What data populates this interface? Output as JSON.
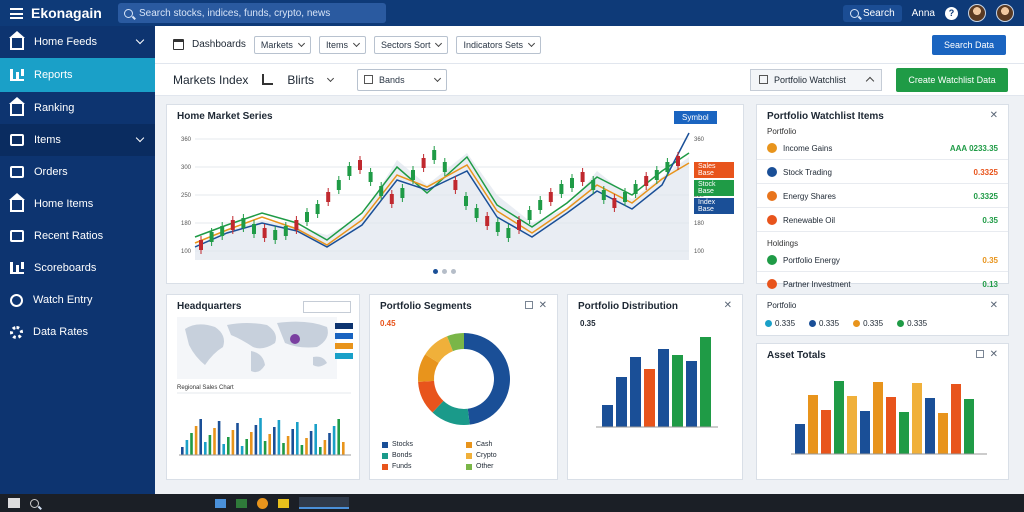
{
  "topbar": {
    "brand": "Ekonagain",
    "search_placeholder": "Search stocks, indices, funds, crypto, news",
    "search_label": "Search",
    "user_label": "Anna",
    "colors": {
      "bar": "#0e3a78",
      "accent": "#1aa0c8"
    }
  },
  "sidebar": {
    "items": [
      {
        "label": "Home Feeds",
        "icon": "home-icon"
      },
      {
        "label": "Reports",
        "icon": "chart-icon",
        "active": true
      },
      {
        "label": "Ranking",
        "icon": "home-icon"
      },
      {
        "label": "Items",
        "icon": "box-icon",
        "expandable": true
      },
      {
        "label": "Orders",
        "icon": "bars-icon"
      },
      {
        "label": "Home Items",
        "icon": "home-icon"
      },
      {
        "label": "Recent Ratios",
        "icon": "box-icon"
      },
      {
        "label": "Scoreboards",
        "icon": "chart-icon"
      },
      {
        "label": "Watch Entry",
        "icon": "globe-icon"
      },
      {
        "label": "Data Rates",
        "icon": "gear-icon"
      }
    ]
  },
  "toolbar": {
    "date_label": "Dashboards",
    "filters": [
      "Markets",
      "Items",
      "Sectors Sort",
      "Indicators Sets"
    ],
    "primary_button": "Search Data",
    "market_title": "Markets Index",
    "market_value": "Blirts",
    "view_select": "Bands",
    "panel_select": "Portfolio Watchlist",
    "export_button": "Create Watchlist Data"
  },
  "main_chart": {
    "title": "Home Market Series",
    "tag": "Symbol",
    "legend_tags": [
      {
        "label": "Sales Base",
        "color": "#e8541c"
      },
      {
        "label": "Stock Base",
        "color": "#1f9b46"
      },
      {
        "label": "Index Base",
        "color": "#1a4f97"
      }
    ]
  },
  "portfolio": {
    "title": "Portfolio Watchlist Items",
    "section1": "Portfolio",
    "rows1": [
      {
        "name": "Income Gains",
        "value": "AAA 0233.35",
        "color": "#e8941c",
        "value_color": "#1f9b46"
      },
      {
        "name": "Stock Trading",
        "value": "0.3325",
        "color": "#1a4f97",
        "value_color": "#e8541c"
      },
      {
        "name": "Energy Shares",
        "value": "0.3325",
        "color": "#e8741c",
        "value_color": "#1f9b46"
      },
      {
        "name": "Renewable Oil",
        "value": "0.35",
        "color": "#e8541c",
        "value_color": "#1f9b46"
      }
    ],
    "section2": "Holdings",
    "rows2": [
      {
        "name": "Portfolio Energy",
        "value": "0.35",
        "color": "#1f9b46",
        "value_color": "#e8941c"
      },
      {
        "name": "Partner Investment",
        "value": "0.13",
        "color": "#e8541c",
        "value_color": "#1f9b46"
      }
    ]
  },
  "performance": {
    "title": "Portfolio",
    "items": [
      {
        "label": "0.335",
        "color": "#1aa0c8"
      },
      {
        "label": "0.335",
        "color": "#1a4f97"
      },
      {
        "label": "0.335",
        "color": "#e8941c"
      },
      {
        "label": "0.335",
        "color": "#1f9b46"
      }
    ]
  },
  "cards": {
    "map": {
      "title": "Headquarters",
      "footer": "Regional Sales Chart"
    },
    "donut": {
      "title": "Portfolio Segments",
      "kpi": "0.45"
    },
    "bars": {
      "title": "Portfolio Distribution",
      "kpi": "0.35"
    },
    "grouped": {
      "title": "Asset Totals"
    }
  },
  "donut_legend": [
    "Stocks",
    "Bonds",
    "Funds",
    "Cash",
    "Crypto",
    "Other"
  ]
}
